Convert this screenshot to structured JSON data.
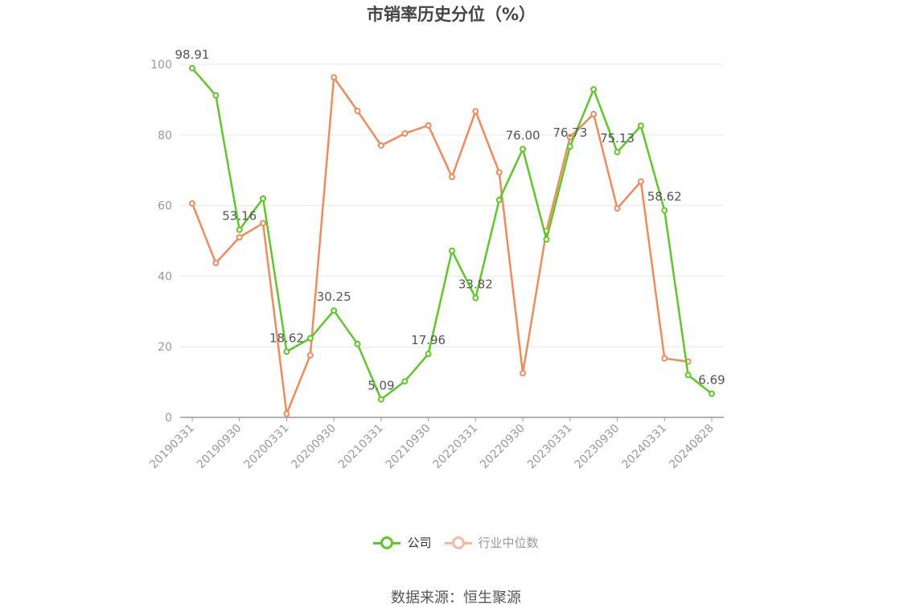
{
  "title": "市销率历史分位（%）",
  "source": "数据来源：恒生聚源",
  "colors": {
    "company": "#5cc925",
    "industry": "#f28a5a",
    "industry_legend": "#f7b8a0",
    "grid": "#e6e6ef",
    "axis": "#999999"
  },
  "chart_data": {
    "type": "line",
    "x": [
      "20190331",
      "20190630",
      "20190930",
      "20191231",
      "20200331",
      "20200630",
      "20200930",
      "20201231",
      "20210331",
      "20210630",
      "20210930",
      "20211231",
      "20220331",
      "20220630",
      "20220930",
      "20221231",
      "20230331",
      "20230630",
      "20230930",
      "20231231",
      "20240331",
      "20240630",
      "20240828"
    ],
    "x_tick_labels": [
      "20190331",
      "20190930",
      "20200331",
      "20200930",
      "20210331",
      "20210930",
      "20220331",
      "20220930",
      "20230331",
      "20230930",
      "20240331",
      "20240828"
    ],
    "ylim": [
      0,
      100
    ],
    "y_ticks": [
      "0",
      "20",
      "40",
      "60",
      "80",
      "100"
    ],
    "grid": true,
    "legend_position": "bottom",
    "series": [
      {
        "name": "公司",
        "values": [
          98.91,
          91.2,
          53.16,
          62.0,
          18.62,
          22.4,
          30.25,
          20.8,
          5.09,
          10.2,
          17.96,
          47.2,
          33.82,
          61.6,
          76.0,
          50.4,
          76.73,
          92.9,
          75.13,
          82.6,
          58.62,
          12.0,
          6.69
        ],
        "labels": [
          "98.91",
          "",
          "53.16",
          "",
          "18.62",
          "",
          "30.25",
          "",
          "5.09",
          "",
          "17.96",
          "",
          "33.82",
          "",
          "76.00",
          "",
          "76.73",
          "",
          "75.13",
          "",
          "58.62",
          "",
          "6.69"
        ]
      },
      {
        "name": "行业中位数",
        "values": [
          60.6,
          43.7,
          51.0,
          55.0,
          1.0,
          17.6,
          96.3,
          86.8,
          77.0,
          80.4,
          82.7,
          68.1,
          86.7,
          69.4,
          12.5,
          52.8,
          79.4,
          85.9,
          59.2,
          66.8,
          16.7,
          15.8,
          null
        ]
      }
    ]
  }
}
